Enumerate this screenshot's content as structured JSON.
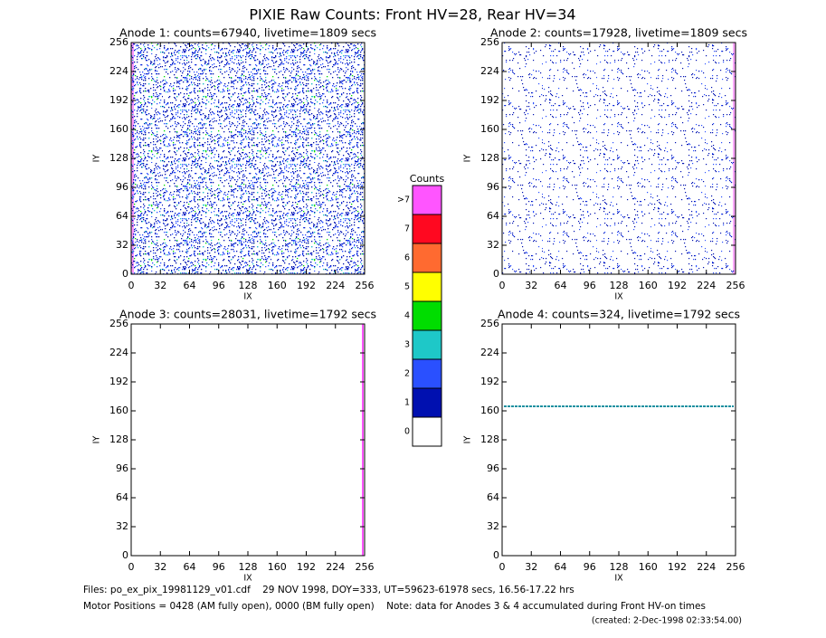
{
  "chart_data": [
    {
      "type": "heatmap",
      "title": "Anode 1: counts=67940, livetime=1809 secs",
      "xlabel": "IX",
      "ylabel": "IY",
      "xlim": [
        0,
        256
      ],
      "ylim": [
        0,
        256
      ],
      "xticks": [
        0,
        32,
        64,
        96,
        128,
        160,
        192,
        224,
        256
      ],
      "yticks": [
        0,
        32,
        64,
        96,
        128,
        160,
        192,
        224,
        256
      ]
    },
    {
      "type": "heatmap",
      "title": "Anode 2: counts=17928, livetime=1809 secs",
      "xlabel": "IX",
      "ylabel": "IY",
      "xlim": [
        0,
        256
      ],
      "ylim": [
        0,
        256
      ],
      "xticks": [
        0,
        32,
        64,
        96,
        128,
        160,
        192,
        224,
        256
      ],
      "yticks": [
        0,
        32,
        64,
        96,
        128,
        160,
        192,
        224,
        256
      ]
    },
    {
      "type": "heatmap",
      "title": "Anode 3: counts=28031, livetime=1792 secs",
      "xlabel": "IX",
      "ylabel": "IY",
      "xlim": [
        0,
        256
      ],
      "ylim": [
        0,
        256
      ],
      "xticks": [
        0,
        32,
        64,
        96,
        128,
        160,
        192,
        224,
        256
      ],
      "yticks": [
        0,
        32,
        64,
        96,
        128,
        160,
        192,
        224,
        256
      ]
    },
    {
      "type": "heatmap",
      "title": "Anode 4: counts=324, livetime=1792 secs",
      "xlabel": "IX",
      "ylabel": "IY",
      "xlim": [
        0,
        256
      ],
      "ylim": [
        0,
        256
      ],
      "xticks": [
        0,
        32,
        64,
        96,
        128,
        160,
        192,
        224,
        256
      ],
      "yticks": [
        0,
        32,
        64,
        96,
        128,
        160,
        192,
        224,
        256
      ]
    }
  ],
  "title": "PIXIE Raw Counts:  Front HV=28, Rear HV=34",
  "colorbar": {
    "title": "Counts",
    "levels": [
      {
        "label": "0",
        "color": "#ffffff"
      },
      {
        "label": "1",
        "color": "#0010b0"
      },
      {
        "label": "2",
        "color": "#2a50ff"
      },
      {
        "label": "3",
        "color": "#1ec8c8"
      },
      {
        "label": "4",
        "color": "#00dd00"
      },
      {
        "label": "5",
        "color": "#ffff00"
      },
      {
        "label": "6",
        "color": "#ff6a30"
      },
      {
        "label": "7",
        "color": "#ff0820"
      },
      {
        "label": ">7",
        "color": "#ff55ff"
      }
    ]
  },
  "footer": {
    "files": "Files: po_ex_pix_19981129_v01.cdf    29 NOV 1998, DOY=333, UT=59623-61978 secs, 16.56-17.22 hrs",
    "motor": "Motor Positions = 0428 (AM fully open), 0000 (BM fully open)    Note: data for Anodes 3 & 4 accumulated during Front HV-on times",
    "created": "(created:  2-Dec-1998 02:33:54.00)"
  }
}
